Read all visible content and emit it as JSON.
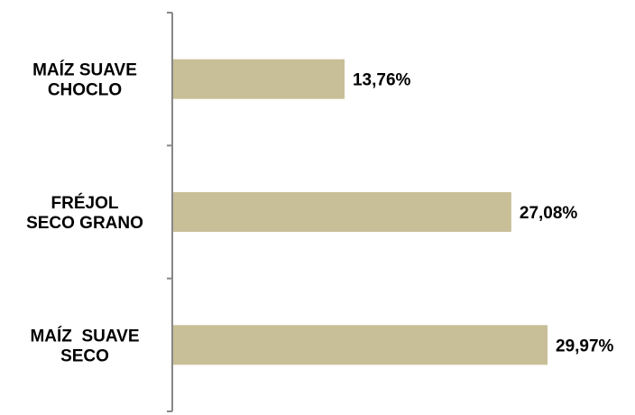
{
  "chart_data": {
    "type": "bar",
    "orientation": "horizontal",
    "categories": [
      [
        "MAÍZ SUAVE",
        "CHOCLO"
      ],
      [
        "FRÉJOL",
        "SECO GRANO"
      ],
      [
        "MAÍZ  SUAVE",
        "SECO"
      ]
    ],
    "values": [
      13.76,
      27.08,
      29.97
    ],
    "value_labels": [
      "13,76%",
      "27,08%",
      "29,97%"
    ],
    "unit": "%",
    "xlim": [
      0,
      30.5
    ],
    "grid": false,
    "legend": "none",
    "colors": {
      "bar": "#c8bf98",
      "axis": "#888888",
      "text": "#000000"
    }
  }
}
